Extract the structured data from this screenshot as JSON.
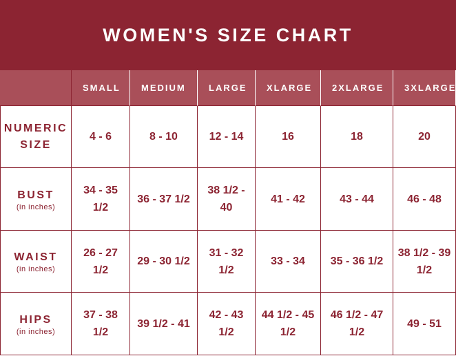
{
  "title": "WOMEN'S SIZE CHART",
  "columns": [
    "SMALL",
    "MEDIUM",
    "LARGE",
    "XLARGE",
    "2XLARGE",
    "3XLARGE"
  ],
  "rows": [
    {
      "label": "NUMERIC SIZE",
      "sublabel": "",
      "values": [
        "4 - 6",
        "8 - 10",
        "12 - 14",
        "16",
        "18",
        "20"
      ]
    },
    {
      "label": "BUST",
      "sublabel": "(in inches)",
      "values": [
        "34 - 35 1/2",
        "36 - 37 1/2",
        "38 1/2 - 40",
        "41 - 42",
        "43 - 44",
        "46 - 48"
      ]
    },
    {
      "label": "WAIST",
      "sublabel": "(in inches)",
      "values": [
        "26 - 27 1/2",
        "29 - 30 1/2",
        "31 - 32 1/2",
        "33 - 34",
        "35 - 36 1/2",
        "38 1/2 - 39 1/2"
      ]
    },
    {
      "label": "HIPS",
      "sublabel": "(in inches)",
      "values": [
        "37 - 38 1/2",
        "39 1/2 - 41",
        "42 - 43 1/2",
        "44 1/2 - 45 1/2",
        "46 1/2 - 47 1/2",
        "49 - 51"
      ]
    }
  ],
  "colors": {
    "accent": "#8c2432",
    "header_row": "#a94f59"
  }
}
